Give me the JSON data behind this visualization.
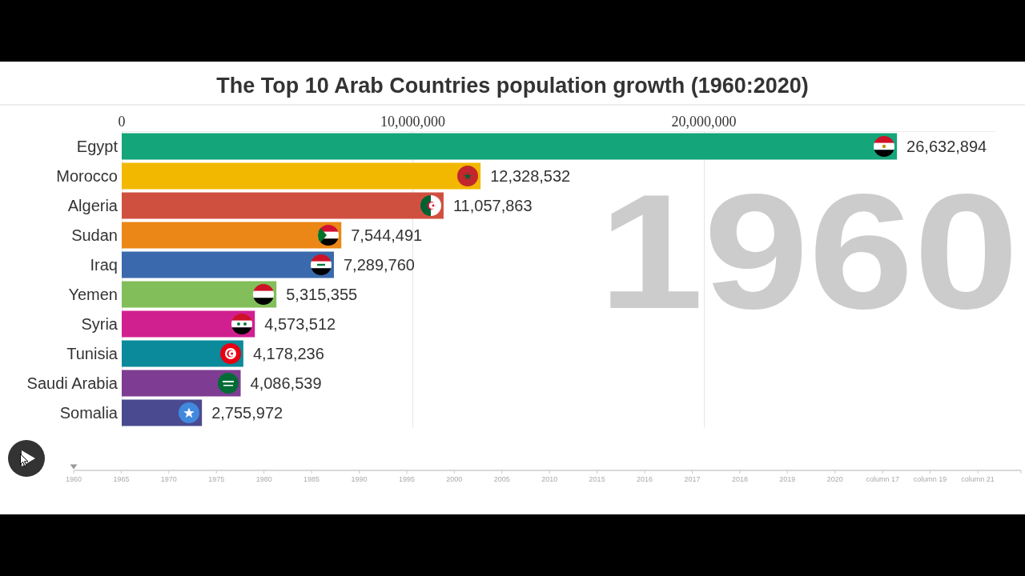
{
  "chart_data": {
    "type": "bar",
    "orientation": "horizontal",
    "title": "The Top 10 Arab Countries population growth (1960:2020)",
    "categories": [
      "Egypt",
      "Morocco",
      "Algeria",
      "Sudan",
      "Iraq",
      "Yemen",
      "Syria",
      "Tunisia",
      "Saudi Arabia",
      "Somalia"
    ],
    "values": [
      26632894,
      12328532,
      11057863,
      7544491,
      7289760,
      5315355,
      4573512,
      4178236,
      4086539,
      2755972
    ],
    "value_labels": [
      "26,632,894",
      "12,328,532",
      "11,057,863",
      "7,544,491",
      "7,289,760",
      "5,315,355",
      "4,573,512",
      "4,178,236",
      "4,086,539",
      "2,755,972"
    ],
    "colors": [
      "#14a57a",
      "#f2b800",
      "#d05040",
      "#ea8716",
      "#3a69ad",
      "#82be5a",
      "#d0208f",
      "#0a8a9a",
      "#7e3d92",
      "#4a4a91"
    ],
    "xlim": [
      0,
      30000000
    ],
    "xticks": [
      0,
      {
        "value": 10000000,
        "label": "10,000,000"
      },
      {
        "value": 20000000,
        "label": "20,000,000"
      }
    ],
    "grid": "x",
    "annotations": [
      "1960",
      "1960",
      "1965",
      "1970",
      "1975",
      "1980",
      "1985",
      "1990",
      "1995",
      "2000",
      "2005",
      "2010",
      "2015",
      "2016",
      "2017",
      "2018",
      "2019",
      "2020",
      "column 17",
      "column 19",
      "column 21"
    ]
  }
}
